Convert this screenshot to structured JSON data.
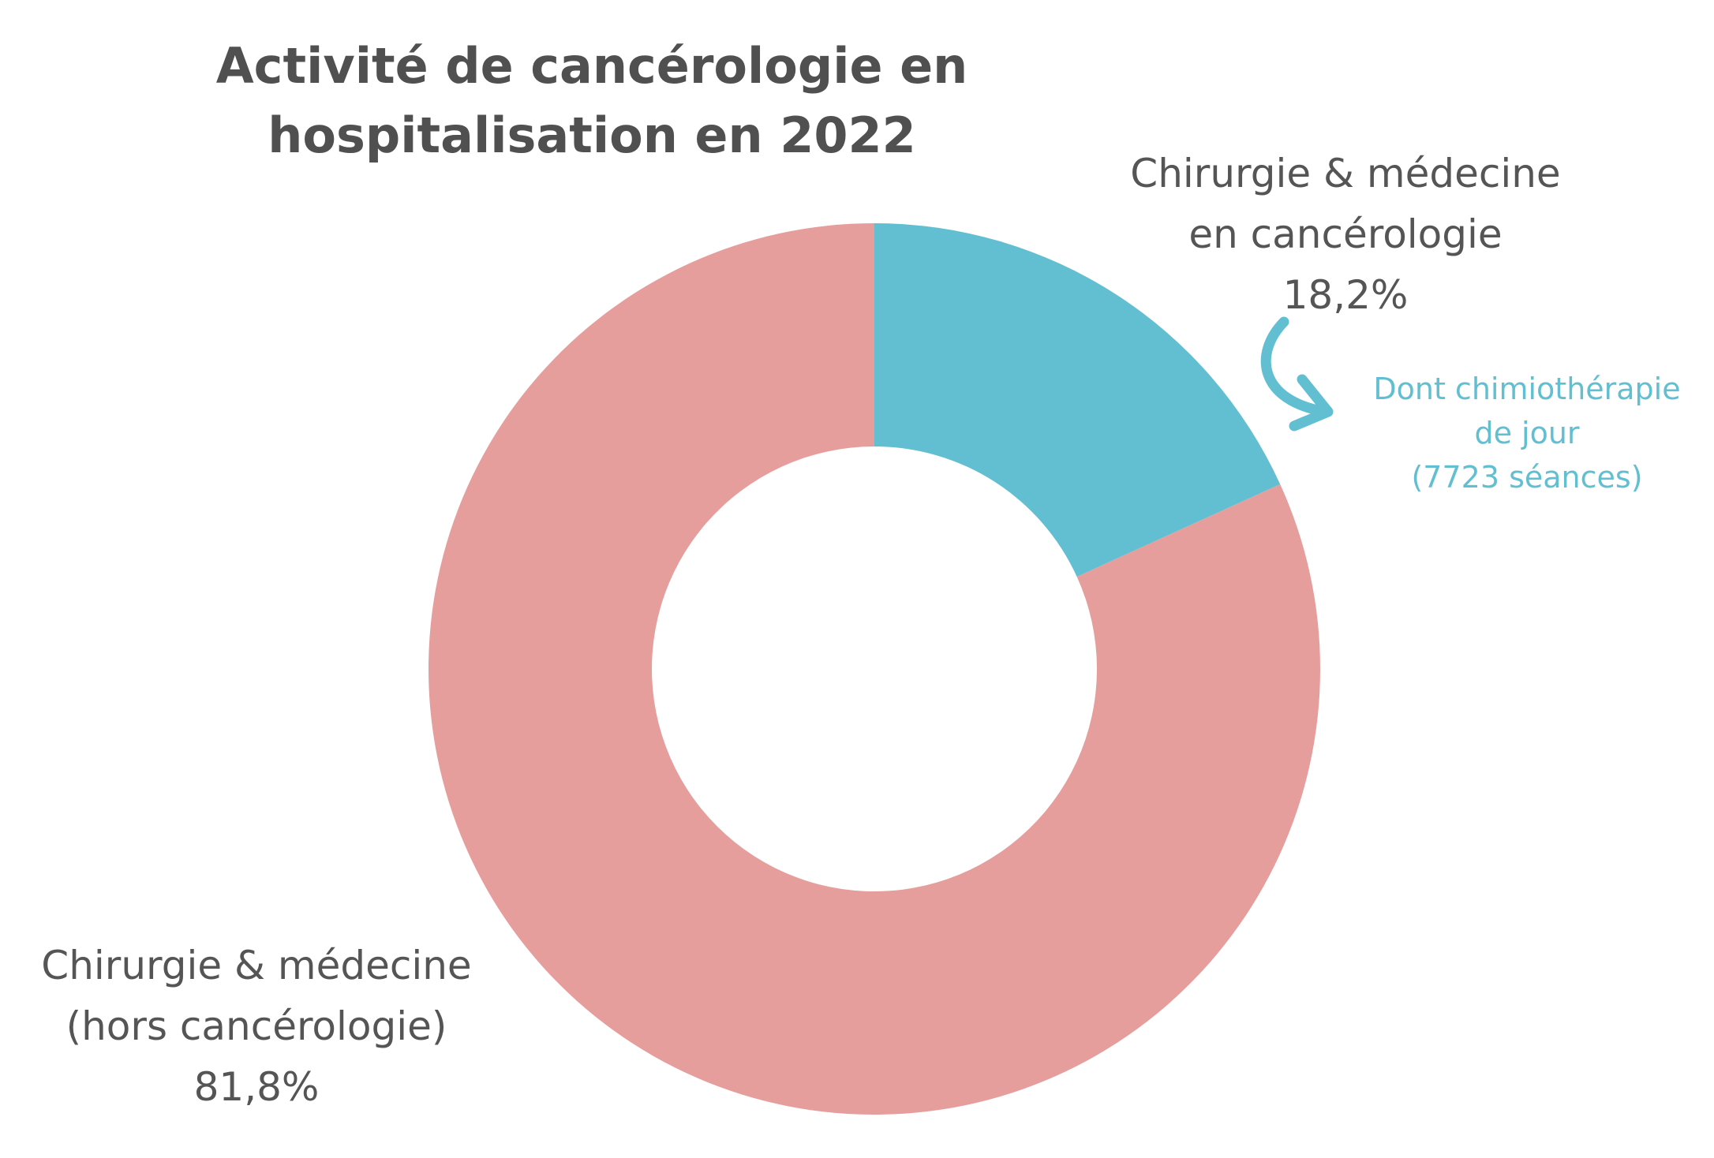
{
  "chart_data": {
    "type": "pie",
    "variant": "donut",
    "title": [
      "Activité de cancérologie en",
      "hospitalisation en 2022"
    ],
    "start_angle_deg": 0,
    "direction": "clockwise",
    "slices": [
      {
        "label_lines": [
          "Chirurgie & médecine",
          "en cancérologie"
        ],
        "value": 18.2,
        "value_label": "18,2%",
        "color": "#62bfd1"
      },
      {
        "label_lines": [
          "Chirurgie & médecine",
          "(hors cancérologie)"
        ],
        "value": 81.8,
        "value_label": "81,8%",
        "color": "#e69e9d"
      }
    ],
    "annotation": {
      "lines": [
        "Dont chimiothérapie",
        "de jour",
        "(7723 séances)"
      ],
      "color": "#62bfd1",
      "arrow_icon": "curved-arrow-icon",
      "refers_to": "Chirurgie & médecine en cancérologie"
    },
    "legend": "none"
  }
}
